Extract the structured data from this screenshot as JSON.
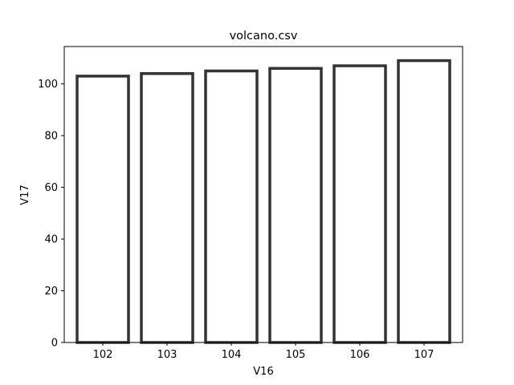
{
  "chart_data": {
    "type": "bar",
    "title": "volcano.csv",
    "xlabel": "V16",
    "ylabel": "V17",
    "categories": [
      "102",
      "103",
      "104",
      "105",
      "106",
      "107"
    ],
    "values": [
      103,
      104,
      105,
      106,
      107,
      109
    ],
    "ylim": [
      0,
      114.45
    ],
    "yticks": [
      "0",
      "20",
      "40",
      "60",
      "80",
      "100"
    ],
    "bar_fill": "#ffffff",
    "bar_edge": "#333333",
    "grid": false,
    "legend": "none"
  }
}
